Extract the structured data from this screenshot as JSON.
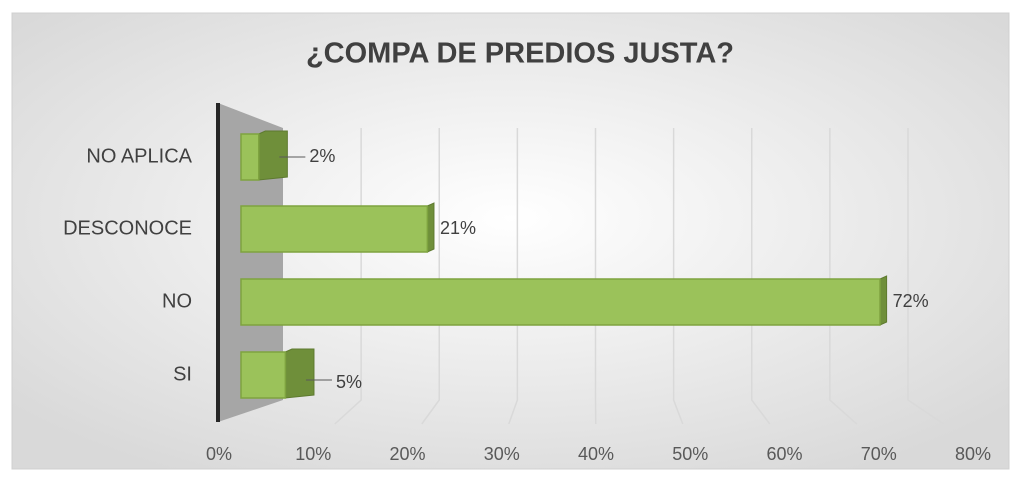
{
  "chart_data": {
    "type": "bar3d",
    "title": "¿COMPA DE PREDIOS JUSTA?",
    "categories": [
      "NO APLICA",
      "DESCONOCE",
      "NO",
      "SI"
    ],
    "values": [
      2,
      21,
      72,
      5
    ],
    "value_labels": [
      "2%",
      "21%",
      "72%",
      "5%"
    ],
    "color": "#9bc25a",
    "xlim": [
      0,
      80
    ],
    "xticks": [
      {
        "value": 0,
        "label": "0%"
      },
      {
        "value": 10,
        "label": "10%"
      },
      {
        "value": 20,
        "label": "20%"
      },
      {
        "value": 30,
        "label": "30%"
      },
      {
        "value": 40,
        "label": "40%"
      },
      {
        "value": 50,
        "label": "50%"
      },
      {
        "value": 60,
        "label": "60%"
      },
      {
        "value": 70,
        "label": "70%"
      },
      {
        "value": 80,
        "label": "80%"
      }
    ],
    "grid": true
  }
}
